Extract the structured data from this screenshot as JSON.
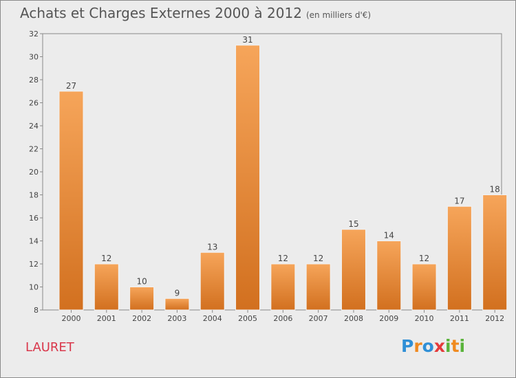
{
  "chart_data": {
    "type": "bar",
    "title": "Achats et Charges Externes 2000 à 2012",
    "subtitle": "(en milliers d'€)",
    "categories": [
      "2000",
      "2001",
      "2002",
      "2003",
      "2004",
      "2005",
      "2006",
      "2007",
      "2008",
      "2009",
      "2010",
      "2011",
      "2012"
    ],
    "values": [
      27,
      12,
      10,
      9,
      13,
      31,
      12,
      12,
      15,
      14,
      12,
      17,
      18
    ],
    "ylim": [
      8,
      32
    ],
    "yticks": [
      8,
      10,
      12,
      14,
      16,
      18,
      20,
      22,
      24,
      26,
      28,
      30,
      32
    ],
    "grid": false,
    "bar_color_top": "#f6a55a",
    "bar_color_bottom": "#d2701f"
  },
  "commune": "LAURET",
  "brand": {
    "text": "Proxiti",
    "letters": [
      {
        "char": "P",
        "color": "#2f8fd6"
      },
      {
        "char": "r",
        "color": "#f08a20"
      },
      {
        "char": "o",
        "color": "#2f8fd6"
      },
      {
        "char": "x",
        "color": "#e43a3a"
      },
      {
        "char": "i",
        "color": "#59b33a"
      },
      {
        "char": "t",
        "color": "#f08a20"
      },
      {
        "char": "i",
        "color": "#59b33a"
      }
    ]
  }
}
